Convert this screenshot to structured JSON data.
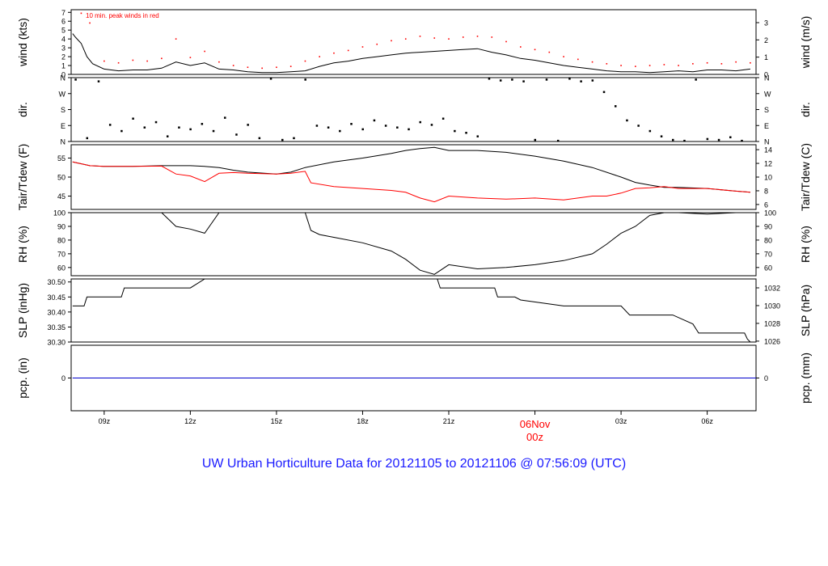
{
  "footer_title": "UW Urban Horticulture Data for 20121105  to  20121106 @ 07:56:09  (UTC)",
  "colors": {
    "axis": "#000000",
    "secondary": "#ff0000",
    "precip_line": "#0000cc",
    "footer": "#1a1aff"
  },
  "chart_data": [
    {
      "type": "line",
      "id": "wind",
      "ylabel_left": "wind (kts)",
      "ylabel_right": "wind (m/s)",
      "annotation": "10 min. peak winds in red",
      "ylim": [
        0,
        7.3
      ],
      "yticks_left": [
        "0",
        "1",
        "2",
        "3",
        "4",
        "5",
        "6",
        "7"
      ],
      "right_ylim": [
        0,
        3.75
      ],
      "yticks_right": [
        "0",
        "1",
        "2",
        "3"
      ],
      "series": [
        {
          "name": "",
          "x": [
            7.9,
            8.0,
            8.2,
            8.4,
            8.6,
            9.0,
            9.5,
            10,
            10.5,
            11,
            11.5,
            12,
            12.5,
            13,
            13.5,
            14,
            14.5,
            15,
            15.5,
            16,
            16.5,
            17,
            17.5,
            18,
            18.5,
            19,
            19.5,
            20,
            20.5,
            21,
            21.5,
            22,
            22.5,
            23,
            23.5,
            24,
            24.5,
            25,
            25.5,
            26,
            26.5,
            27,
            27.5,
            28,
            28.5,
            29,
            29.5,
            30,
            30.5,
            31,
            31.5
          ],
          "values": [
            4.6,
            4.2,
            3.5,
            2.0,
            1.2,
            0.6,
            0.4,
            0.5,
            0.5,
            0.7,
            1.4,
            1.0,
            1.3,
            0.6,
            0.5,
            0.3,
            0.2,
            0.2,
            0.3,
            0.4,
            0.9,
            1.3,
            1.5,
            1.8,
            2.0,
            2.2,
            2.4,
            2.5,
            2.6,
            2.7,
            2.8,
            2.9,
            2.5,
            2.2,
            1.8,
            1.6,
            1.3,
            1.0,
            0.8,
            0.6,
            0.4,
            0.3,
            0.3,
            0.2,
            0.3,
            0.4,
            0.3,
            0.5,
            0.5,
            0.4,
            0.6
          ]
        },
        {
          "name": "",
          "x": [
            8.2,
            8.5,
            9.0,
            9.5,
            10,
            10.5,
            11,
            11.5,
            12,
            12.5,
            13,
            13.5,
            14,
            14.5,
            15,
            15.5,
            16,
            16.5,
            17,
            17.5,
            18,
            18.5,
            19,
            19.5,
            20,
            20.5,
            21,
            21.5,
            22,
            22.5,
            23,
            23.5,
            24,
            24.5,
            25,
            25.5,
            26,
            26.5,
            27,
            27.5,
            28,
            28.5,
            29,
            29.5,
            30,
            30.5,
            31,
            31.5
          ],
          "values": [
            6.9,
            5.8,
            1.5,
            1.3,
            1.6,
            1.5,
            1.8,
            4.0,
            1.9,
            2.6,
            1.4,
            1.0,
            0.8,
            0.7,
            0.8,
            0.9,
            1.5,
            2.0,
            2.4,
            2.7,
            3.1,
            3.4,
            3.8,
            4.0,
            4.3,
            4.1,
            4.0,
            4.2,
            4.3,
            4.2,
            3.7,
            3.1,
            2.8,
            2.5,
            2.0,
            1.7,
            1.4,
            1.2,
            1.0,
            0.9,
            1.0,
            1.1,
            1.0,
            1.2,
            1.3,
            1.2,
            1.4,
            1.3
          ]
        }
      ]
    },
    {
      "type": "scatter",
      "id": "direction",
      "ylabel_left": "dir.",
      "ylabel_right": "dir.",
      "yticks_left": [
        "N",
        "E",
        "S",
        "W",
        "N"
      ],
      "yticks_right": [
        "N",
        "E",
        "S",
        "W",
        "N"
      ],
      "ylim": [
        0,
        360
      ],
      "series": [
        {
          "name": "",
          "x": [
            8.0,
            8.4,
            8.8,
            9.2,
            9.6,
            10.0,
            10.4,
            10.8,
            11.2,
            11.6,
            12.0,
            12.4,
            12.8,
            13.2,
            13.6,
            14.0,
            14.4,
            14.8,
            15.2,
            15.6,
            16.0,
            16.4,
            16.8,
            17.2,
            17.6,
            18.0,
            18.4,
            18.8,
            19.2,
            19.6,
            20.0,
            20.4,
            20.8,
            21.2,
            21.6,
            22.0,
            22.4,
            22.8,
            23.2,
            23.6,
            24.0,
            24.4,
            24.8,
            25.2,
            25.6,
            26.0,
            26.4,
            26.8,
            27.2,
            27.6,
            28.0,
            28.4,
            28.8,
            29.2,
            29.6,
            30.0,
            30.4,
            30.8,
            31.2
          ],
          "values": [
            350,
            20,
            340,
            95,
            60,
            130,
            80,
            110,
            30,
            80,
            70,
            100,
            60,
            135,
            40,
            95,
            20,
            355,
            10,
            20,
            350,
            90,
            80,
            60,
            100,
            70,
            120,
            90,
            80,
            70,
            110,
            95,
            130,
            60,
            50,
            30,
            355,
            345,
            350,
            340,
            10,
            350,
            5,
            355,
            340,
            345,
            280,
            200,
            120,
            90,
            60,
            30,
            10,
            5,
            350,
            15,
            10,
            25,
            5
          ]
        }
      ]
    },
    {
      "type": "line",
      "id": "temperature",
      "ylabel_left": "Tair/Tdew (F)",
      "ylabel_right": "Tair/Tdew (C)",
      "ylim": [
        41.5,
        58.5
      ],
      "yticks_left": [
        "45",
        "50",
        "55"
      ],
      "right_ylim": [
        5.28,
        14.72
      ],
      "yticks_right": [
        "6",
        "8",
        "10",
        "12",
        "14"
      ],
      "series": [
        {
          "name": "",
          "x": [
            7.9,
            8.5,
            9.0,
            10,
            11,
            12,
            12.5,
            13,
            13.5,
            14,
            15,
            15.5,
            16,
            17,
            18,
            19,
            19.5,
            20,
            20.5,
            21,
            22,
            23,
            24,
            25,
            26,
            27,
            27.5,
            28,
            28.5,
            29,
            30,
            31,
            31.5
          ],
          "values": [
            54.0,
            53.0,
            52.8,
            52.8,
            53.0,
            53.0,
            52.8,
            52.5,
            51.8,
            51.3,
            50.8,
            51.3,
            52.5,
            54.0,
            55.0,
            56.2,
            57.0,
            57.5,
            57.8,
            57.0,
            57.0,
            56.5,
            55.5,
            54.2,
            52.5,
            50.0,
            48.6,
            47.9,
            47.3,
            47.3,
            47.0,
            46.3,
            46.0
          ]
        },
        {
          "name": "",
          "x": [
            7.9,
            8.5,
            9.0,
            10,
            11,
            11.5,
            12,
            12.5,
            13,
            13.5,
            14,
            15,
            15.5,
            16,
            16.2,
            17,
            18,
            19,
            19.5,
            20,
            20.5,
            21,
            22,
            23,
            24,
            25,
            26,
            26.5,
            27,
            27.5,
            28,
            28.5,
            29,
            30,
            31,
            31.5
          ],
          "values": [
            54.0,
            53.0,
            52.8,
            52.8,
            52.9,
            50.8,
            50.3,
            48.8,
            51.0,
            51.2,
            51.0,
            50.8,
            51.0,
            51.5,
            48.5,
            47.5,
            47.0,
            46.5,
            46.0,
            44.5,
            43.5,
            45.0,
            44.5,
            44.2,
            44.5,
            44.0,
            45.0,
            45.0,
            45.8,
            47.0,
            47.2,
            47.5,
            47.0,
            47.0,
            46.3,
            46.0
          ]
        }
      ]
    },
    {
      "type": "line",
      "id": "humidity",
      "ylabel_left": "RH (%)",
      "ylabel_right": "RH (%)",
      "ylim": [
        54,
        100
      ],
      "yticks_left": [
        "60",
        "70",
        "80",
        "90",
        "100"
      ],
      "yticks_right": [
        "60",
        "70",
        "80",
        "90",
        "100"
      ],
      "series": [
        {
          "name": "",
          "x": [
            11.0,
            11.5,
            12.0,
            12.5,
            13.0,
            13.5,
            14,
            14.5,
            15,
            16,
            16.2,
            16.5,
            17,
            18,
            19,
            19.5,
            20,
            20.5,
            21,
            22,
            23,
            24,
            25,
            26,
            26.5,
            27,
            27.5,
            28,
            28.5,
            29,
            30,
            31
          ],
          "values": [
            100,
            90,
            88,
            85,
            100,
            100,
            100,
            100,
            100,
            100,
            87,
            84,
            82,
            78,
            72,
            66,
            58,
            55,
            62,
            59,
            60,
            62,
            65,
            70,
            77,
            85,
            90,
            98,
            100,
            100,
            99,
            100
          ]
        }
      ]
    },
    {
      "type": "line",
      "id": "pressure",
      "ylabel_left": "SLP (inHg)",
      "ylabel_right": "SLP (hPa)",
      "ylim": [
        30.3,
        30.51
      ],
      "yticks_left": [
        "30.30",
        "30.35",
        "30.40",
        "30.45",
        "30.50"
      ],
      "right_ylim": [
        1025.9,
        1033.0
      ],
      "yticks_right": [
        "1026",
        "1028",
        "1030",
        "1032"
      ],
      "series": [
        {
          "name": "",
          "x": [
            7.9,
            8.3,
            8.4,
            9.6,
            9.7,
            10.5,
            11.0,
            12.0,
            12.5,
            13.5,
            14.5,
            16.0,
            17.0,
            18.0,
            19.0,
            20.0,
            20.6,
            20.7,
            21.5,
            22.6,
            22.7,
            23.3,
            23.5,
            25.0,
            26.0,
            26.5,
            27.0,
            27.3,
            28.0,
            28.8,
            29.5,
            29.7,
            30.5,
            31.3,
            31.4,
            31.5
          ],
          "values": [
            30.42,
            30.42,
            30.45,
            30.45,
            30.48,
            30.48,
            30.48,
            30.48,
            30.51,
            30.51,
            30.51,
            30.51,
            30.51,
            30.51,
            30.51,
            30.51,
            30.51,
            30.48,
            30.48,
            30.48,
            30.45,
            30.45,
            30.44,
            30.42,
            30.42,
            30.42,
            30.42,
            30.39,
            30.39,
            30.39,
            30.36,
            30.33,
            30.33,
            30.33,
            30.31,
            30.3
          ]
        }
      ]
    },
    {
      "type": "line",
      "id": "precipitation",
      "ylabel_left": "pcp. (in)",
      "ylabel_right": "pcp. (mm)",
      "ylim": [
        -1,
        1
      ],
      "yticks_left": [
        "0"
      ],
      "yticks_right": [
        "0"
      ],
      "series": [
        {
          "name": "",
          "x": [
            7.9,
            31.7
          ],
          "values": [
            0,
            0
          ]
        }
      ]
    }
  ],
  "x_axis": {
    "range": [
      7.85,
      31.7
    ],
    "tick_labels": [
      "09z",
      "12z",
      "15z",
      "18z",
      "21z",
      "03z",
      "06z"
    ],
    "tick_values": [
      9,
      12,
      15,
      18,
      21,
      27,
      30
    ],
    "date_label": {
      "day": "06Nov",
      "hour": "00z",
      "value": 24
    }
  }
}
